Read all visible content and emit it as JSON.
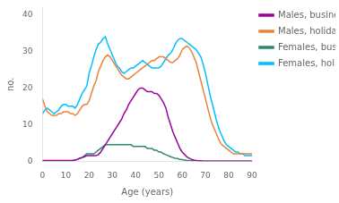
{
  "chart_data": {
    "type": "line",
    "xlabel": "Age (years)",
    "ylabel": "no.",
    "xlim": [
      0,
      90
    ],
    "ylim": [
      0,
      42
    ],
    "xticks": [
      0,
      10,
      20,
      30,
      40,
      50,
      60,
      70,
      80,
      90
    ],
    "yticks": [
      0,
      10,
      20,
      30,
      40
    ],
    "grid": false,
    "legend": "right",
    "x": [
      0,
      1,
      2,
      3,
      4,
      5,
      6,
      7,
      8,
      9,
      10,
      11,
      12,
      13,
      14,
      15,
      16,
      17,
      18,
      19,
      20,
      21,
      22,
      23,
      24,
      25,
      26,
      27,
      28,
      29,
      30,
      31,
      32,
      33,
      34,
      35,
      36,
      37,
      38,
      39,
      40,
      41,
      42,
      43,
      44,
      45,
      46,
      47,
      48,
      49,
      50,
      51,
      52,
      53,
      54,
      55,
      56,
      57,
      58,
      59,
      60,
      61,
      62,
      63,
      64,
      65,
      66,
      67,
      68,
      69,
      70,
      71,
      72,
      73,
      74,
      75,
      76,
      77,
      78,
      79,
      80,
      81,
      82,
      83,
      84,
      85,
      86,
      87,
      88,
      89,
      90
    ],
    "series": [
      {
        "name": "Males, business",
        "color": "#9B009B",
        "values": [
          0.2,
          0.2,
          0.2,
          0.2,
          0.2,
          0.2,
          0.2,
          0.2,
          0.2,
          0.2,
          0.2,
          0.2,
          0.2,
          0.2,
          0.3,
          0.5,
          0.8,
          1.0,
          1.2,
          1.5,
          1.5,
          1.5,
          1.5,
          1.5,
          1.8,
          2.5,
          3.5,
          4.5,
          5.5,
          6.5,
          7.5,
          8.5,
          9.5,
          10.5,
          11.5,
          13.0,
          14.0,
          15.5,
          16.5,
          17.5,
          18.5,
          19.5,
          20.0,
          20.0,
          19.5,
          19.0,
          19.0,
          19.0,
          18.5,
          18.5,
          18.0,
          17.0,
          16.0,
          14.5,
          12.0,
          10.0,
          8.0,
          6.5,
          5.0,
          3.5,
          2.5,
          1.8,
          1.2,
          0.8,
          0.5,
          0.3,
          0.2,
          0.1,
          0.1,
          0.0,
          0.0,
          0.0,
          0.0,
          0.0,
          0.0,
          0.0,
          0.0,
          0.0,
          0.0,
          0.0,
          0.0,
          0.0,
          0.0,
          0.0,
          0.0,
          0.0,
          0.0,
          0.0,
          0.0,
          0.0,
          0.0
        ]
      },
      {
        "name": "Males, holiday",
        "color": "#E8823C",
        "values": [
          17.0,
          15.0,
          13.5,
          13.0,
          12.5,
          12.5,
          12.5,
          13.0,
          13.0,
          13.5,
          13.5,
          13.5,
          13.0,
          13.0,
          12.5,
          13.0,
          14.0,
          15.0,
          15.5,
          15.5,
          16.5,
          18.5,
          20.5,
          22.0,
          24.5,
          26.0,
          27.5,
          28.5,
          29.0,
          28.5,
          27.5,
          26.5,
          25.5,
          24.5,
          23.5,
          23.0,
          22.5,
          22.5,
          23.0,
          23.5,
          24.0,
          24.5,
          25.0,
          25.5,
          26.0,
          26.5,
          27.0,
          27.5,
          27.5,
          28.0,
          28.5,
          28.5,
          28.5,
          28.0,
          27.5,
          27.0,
          27.0,
          27.5,
          28.0,
          29.0,
          30.5,
          31.0,
          31.5,
          31.0,
          30.0,
          28.5,
          27.0,
          24.5,
          22.0,
          19.5,
          17.0,
          14.5,
          12.0,
          10.0,
          8.5,
          7.0,
          5.5,
          4.5,
          4.0,
          3.5,
          3.0,
          2.5,
          2.0,
          2.0,
          2.0,
          2.0,
          2.0,
          2.0,
          2.0,
          2.0,
          2.0
        ]
      },
      {
        "name": "Females, business",
        "color": "#2E8B6A",
        "values": [
          0.1,
          0.1,
          0.1,
          0.1,
          0.1,
          0.1,
          0.1,
          0.1,
          0.1,
          0.1,
          0.1,
          0.1,
          0.1,
          0.2,
          0.3,
          0.5,
          0.8,
          1.0,
          1.5,
          2.0,
          2.0,
          2.0,
          2.0,
          2.5,
          3.0,
          3.5,
          4.0,
          4.5,
          4.5,
          4.5,
          4.5,
          4.5,
          4.5,
          4.5,
          4.5,
          4.5,
          4.5,
          4.5,
          4.5,
          4.0,
          4.0,
          4.0,
          4.0,
          4.0,
          4.0,
          3.5,
          3.5,
          3.5,
          3.0,
          3.0,
          2.5,
          2.5,
          2.0,
          1.8,
          1.5,
          1.2,
          1.0,
          0.8,
          0.7,
          0.5,
          0.4,
          0.3,
          0.2,
          0.2,
          0.1,
          0.1,
          0.1,
          0.1,
          0.0,
          0.0,
          0.0,
          0.0,
          0.0,
          0.0,
          0.0,
          0.0,
          0.0,
          0.0,
          0.0,
          0.0,
          0.0,
          0.0,
          0.0,
          0.0,
          0.0,
          0.0,
          0.0,
          0.0,
          0.0,
          0.0,
          0.0
        ]
      },
      {
        "name": "Females, holiday",
        "color": "#00BFFF",
        "values": [
          13.0,
          14.0,
          14.5,
          14.0,
          13.5,
          13.0,
          13.5,
          14.0,
          15.0,
          15.5,
          15.5,
          15.0,
          15.0,
          15.0,
          14.5,
          15.5,
          17.0,
          18.5,
          19.5,
          20.5,
          24.0,
          26.0,
          28.5,
          30.5,
          32.0,
          32.5,
          33.5,
          34.0,
          32.0,
          30.5,
          29.0,
          27.5,
          26.0,
          25.5,
          24.5,
          24.0,
          24.5,
          25.0,
          25.5,
          25.5,
          26.0,
          26.5,
          27.0,
          27.5,
          27.0,
          26.5,
          26.0,
          25.5,
          25.5,
          25.5,
          25.5,
          26.0,
          27.0,
          28.0,
          29.0,
          29.5,
          30.5,
          32.0,
          33.0,
          33.5,
          33.5,
          33.0,
          32.5,
          32.0,
          31.5,
          31.0,
          30.5,
          29.5,
          28.5,
          26.5,
          24.0,
          21.0,
          18.0,
          15.5,
          13.0,
          10.5,
          8.5,
          7.0,
          5.5,
          4.5,
          4.0,
          3.5,
          3.0,
          2.5,
          2.5,
          2.0,
          2.0,
          1.5,
          1.5,
          1.5,
          1.5
        ]
      }
    ]
  }
}
